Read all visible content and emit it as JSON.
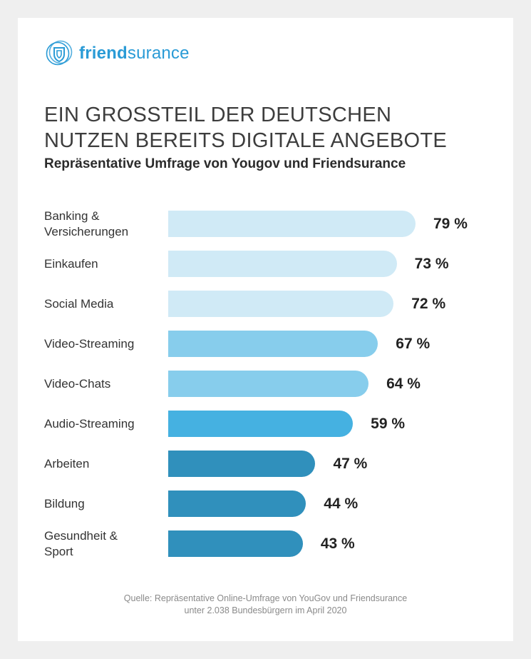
{
  "brand": {
    "name_bold": "friend",
    "name_rest": "surance",
    "icon": "shield-icon",
    "color": "#2a9bd6"
  },
  "title_lines": [
    "EIN GROSSTEIL DER DEUTSCHEN",
    "NUTZEN BEREITS DIGITALE ANGEBOTE"
  ],
  "subtitle": "Repräsentative Umfrage von Yougov und Friendsurance",
  "source_lines": [
    "Quelle: Repräsentative Online-Umfrage von YouGov und Friendsurance",
    "unter 2.038 Bundesbürgern im April 2020"
  ],
  "chart_data": {
    "type": "bar",
    "orientation": "horizontal",
    "unit": "%",
    "categories": [
      "Banking & Versicherungen",
      "Einkaufen",
      "Social Media",
      "Video-Streaming",
      "Video-Chats",
      "Audio-Streaming",
      "Arbeiten",
      "Bildung",
      "Gesundheit & Sport"
    ],
    "category_lines": [
      [
        "Banking &",
        "Versicherungen"
      ],
      [
        "Einkaufen"
      ],
      [
        "Social Media"
      ],
      [
        "Video-Streaming"
      ],
      [
        "Video-Chats"
      ],
      [
        "Audio-Streaming"
      ],
      [
        "Arbeiten"
      ],
      [
        "Bildung"
      ],
      [
        "Gesundheit &",
        "Sport"
      ]
    ],
    "values": [
      79,
      73,
      72,
      67,
      64,
      59,
      47,
      44,
      43
    ],
    "value_labels": [
      "79 %",
      "73 %",
      "72 %",
      "67 %",
      "64 %",
      "59 %",
      "47 %",
      "44 %",
      "43 %"
    ],
    "colors": [
      "#d0eaf6",
      "#d0eaf6",
      "#d0eaf6",
      "#87cdec",
      "#87cdec",
      "#45b1e1",
      "#3090bc",
      "#3090bc",
      "#3090bc"
    ],
    "xlim": [
      0,
      100
    ],
    "grid": false,
    "legend": "none"
  }
}
